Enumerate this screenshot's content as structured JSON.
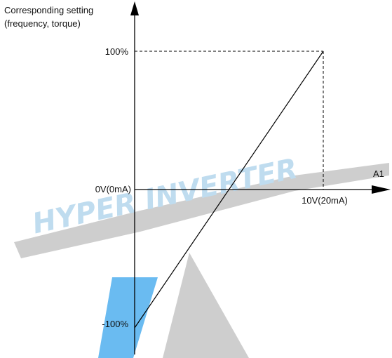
{
  "diagram": {
    "y_axis_title_line1": "Corresponding setting",
    "y_axis_title_line2": "(frequency, torque)",
    "x_axis_title": "A1",
    "x_origin_label": "0V(0mA)",
    "x_max_label": "10V(20mA)",
    "y_max_label": "100%",
    "y_min_label": "-100%"
  },
  "watermark": {
    "text": "HYPER INVERTER",
    "text_color": "#b9d9ee",
    "gray_color": "#c9c9c9",
    "blue_color": "#5ab4f0"
  },
  "chart_data": {
    "type": "line",
    "series": [
      {
        "x": [
          0,
          10
        ],
        "y": [
          -100,
          100
        ]
      }
    ],
    "xlim": [
      0,
      10
    ],
    "ylim": [
      -100,
      100
    ]
  }
}
